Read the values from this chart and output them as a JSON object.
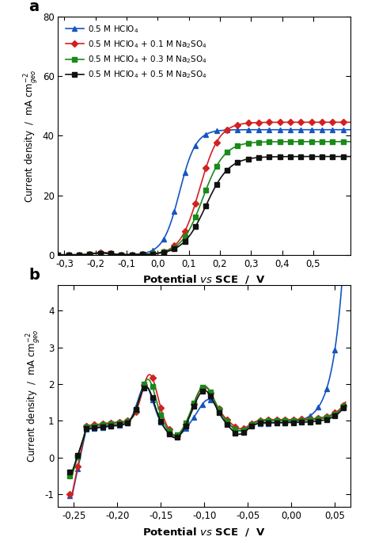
{
  "panel_a": {
    "xlim": [
      -0.32,
      0.62
    ],
    "ylim": [
      0,
      80
    ],
    "xticks": [
      -0.3,
      -0.2,
      -0.1,
      0.0,
      0.1,
      0.2,
      0.3,
      0.4,
      0.5
    ],
    "xticklabels": [
      "-0,3",
      "-0,2",
      "-0,1",
      "0,0",
      "0,1",
      "0,2",
      "0,3",
      "0,4",
      "0,5"
    ],
    "yticks": [
      0,
      20,
      40,
      60,
      80
    ],
    "colors": [
      "#1555c0",
      "#d42020",
      "#1a8a1a",
      "#111111"
    ],
    "markers": [
      "^",
      "D",
      "s",
      "s"
    ],
    "markersizes": [
      4.5,
      4.0,
      4.0,
      4.0
    ],
    "labels": [
      "0.5 M HClO$_4$",
      "0.5 M HClO$_4$ + 0.1 M Na$_2$SO$_4$",
      "0.5 M HClO$_4$ + 0.3 M Na$_2$SO$_4$",
      "0.5 M HClO$_4$ + 0.5 M Na$_2$SO$_4$"
    ],
    "panel_label": "a"
  },
  "panel_b": {
    "xlim": [
      -0.268,
      0.068
    ],
    "ylim": [
      -1.35,
      4.7
    ],
    "xticks": [
      -0.25,
      -0.2,
      -0.15,
      -0.1,
      -0.05,
      0.0,
      0.05
    ],
    "xticklabels": [
      "-0,25",
      "-0,20",
      "-0,15",
      "-0,10",
      "-0,05",
      "0,00",
      "0,05"
    ],
    "yticks": [
      -1,
      0,
      1,
      2,
      3,
      4
    ],
    "colors": [
      "#1555c0",
      "#d42020",
      "#1a8a1a",
      "#111111"
    ],
    "markers": [
      "^",
      "D",
      "s",
      "s"
    ],
    "markersizes": [
      4.5,
      4.0,
      4.0,
      4.0
    ],
    "panel_label": "b"
  }
}
